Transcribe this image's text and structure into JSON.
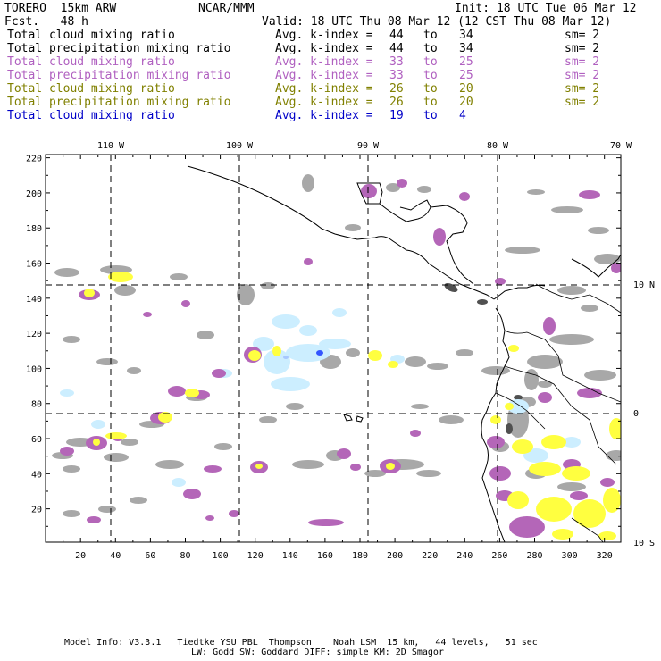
{
  "header": {
    "model": "TORERO  15km ARW",
    "org": "NCAR/MMM",
    "init": "Init: 18 UTC Tue 06 Mar 12",
    "fcst": "Fcst.   48 h",
    "valid": "Valid: 18 UTC Thu 08 Mar 12 (12 CST Thu 08 Mar 12)"
  },
  "legend": [
    {
      "field": "Total cloud mixing ratio",
      "index_label": "Avg. k-index =",
      "from": "44",
      "to_word": "to",
      "to": "34",
      "sm": "sm= 2",
      "color": "#000000"
    },
    {
      "field": "Total precipitation mixing ratio",
      "index_label": "Avg. k-index =",
      "from": "44",
      "to_word": "to",
      "to": "34",
      "sm": "sm= 2",
      "color": "#000000"
    },
    {
      "field": "Total cloud mixing ratio",
      "index_label": "Avg. k-index =",
      "from": "33",
      "to_word": "to",
      "to": "25",
      "sm": "sm= 2",
      "color": "#b060c0"
    },
    {
      "field": "Total precipitation mixing ratio",
      "index_label": "Avg. k-index =",
      "from": "33",
      "to_word": "to",
      "to": "25",
      "sm": "sm= 2",
      "color": "#b060c0"
    },
    {
      "field": "Total cloud mixing ratio",
      "index_label": "Avg. k-index =",
      "from": "26",
      "to_word": "to",
      "to": "20",
      "sm": "sm= 2",
      "color": "#808000"
    },
    {
      "field": "Total precipitation mixing ratio",
      "index_label": "Avg. k-index =",
      "from": "26",
      "to_word": "to",
      "to": "20",
      "sm": "sm= 2",
      "color": "#808000"
    },
    {
      "field": "Total cloud mixing ratio",
      "index_label": "Avg. k-index =",
      "from": "19",
      "to_word": "to",
      "to": "4",
      "sm": "",
      "color": "#0000c8"
    }
  ],
  "map": {
    "lon_labels": [
      "110 W",
      "100 W",
      "90 W",
      "80 W",
      "70 W"
    ],
    "lat_labels": [
      "10 N",
      "0",
      "10 S"
    ],
    "y_ticks": [
      "220",
      "200",
      "180",
      "160",
      "140",
      "120",
      "100",
      "80",
      "60",
      "40",
      "20"
    ],
    "x_ticks": [
      "20",
      "40",
      "60",
      "80",
      "100",
      "120",
      "140",
      "160",
      "180",
      "200",
      "220",
      "240",
      "260",
      "280",
      "300",
      "320"
    ],
    "colors": {
      "gray": "#a8a8a8",
      "purple": "#b466b8",
      "yellow": "#ffff40",
      "cyan": "#cceeff",
      "blue": "#3355ff"
    }
  },
  "footer": {
    "line1": "Model Info: V3.3.1   Tiedtke YSU PBL  Thompson    Noah LSM  15 km,   44 levels,   51 sec",
    "line2": "LW: Godd SW: Goddard DIFF: simple KM: 2D Smagor"
  }
}
